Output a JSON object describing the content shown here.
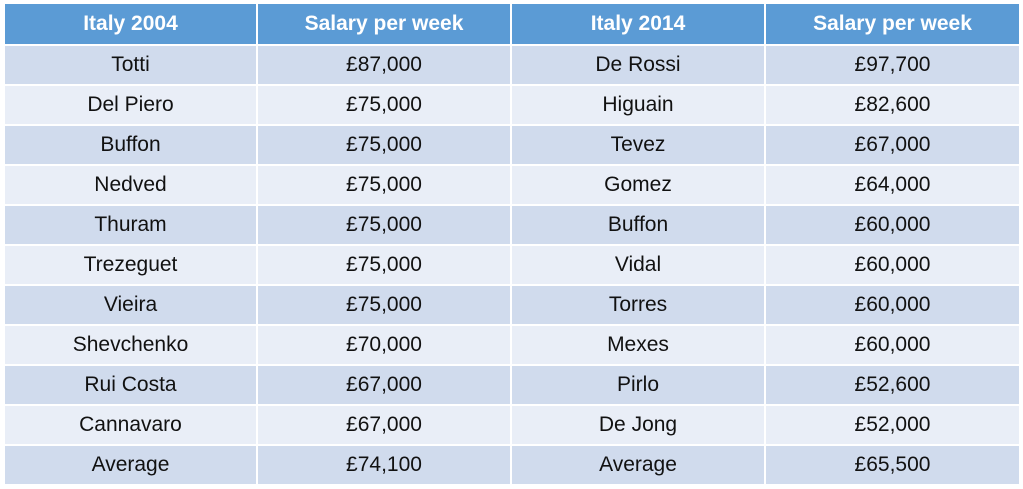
{
  "header": {
    "col1": "Italy 2004",
    "col2": "Salary per week",
    "col3": "Italy 2014",
    "col4": "Salary per week"
  },
  "rows": [
    {
      "p1": "Totti",
      "s1": "£87,000",
      "p2": "De Rossi",
      "s2": "£97,700"
    },
    {
      "p1": "Del Piero",
      "s1": "£75,000",
      "p2": "Higuain",
      "s2": "£82,600"
    },
    {
      "p1": "Buffon",
      "s1": "£75,000",
      "p2": "Tevez",
      "s2": "£67,000"
    },
    {
      "p1": "Nedved",
      "s1": "£75,000",
      "p2": "Gomez",
      "s2": "£64,000"
    },
    {
      "p1": "Thuram",
      "s1": "£75,000",
      "p2": "Buffon",
      "s2": "£60,000"
    },
    {
      "p1": "Trezeguet",
      "s1": "£75,000",
      "p2": "Vidal",
      "s2": "£60,000"
    },
    {
      "p1": "Vieira",
      "s1": "£75,000",
      "p2": "Torres",
      "s2": "£60,000"
    },
    {
      "p1": "Shevchenko",
      "s1": "£70,000",
      "p2": "Mexes",
      "s2": "£60,000"
    },
    {
      "p1": "Rui Costa",
      "s1": "£67,000",
      "p2": "Pirlo",
      "s2": "£52,600"
    },
    {
      "p1": "Cannavaro",
      "s1": "£67,000",
      "p2": "De Jong",
      "s2": "£52,000"
    },
    {
      "p1": "Average",
      "s1": "£74,100",
      "p2": "Average",
      "s2": "£65,500"
    }
  ],
  "colors": {
    "header_bg": "#5b9bd5",
    "row_band_dark": "#d0dbed",
    "row_band_light": "#e9eef7"
  }
}
